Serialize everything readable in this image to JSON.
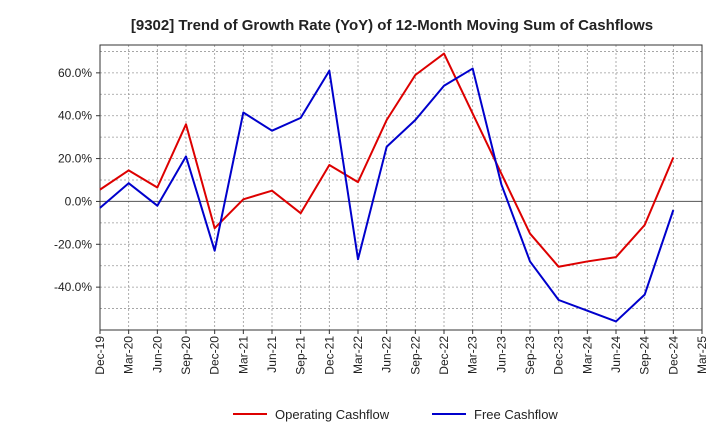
{
  "chart_data": {
    "type": "line",
    "title": "[9302]  Trend of Growth Rate (YoY) of 12-Month Moving Sum of Cashflows",
    "xlabel": "",
    "ylabel": "",
    "categories": [
      "Dec-19",
      "Mar-20",
      "Jun-20",
      "Sep-20",
      "Dec-20",
      "Mar-21",
      "Jun-21",
      "Sep-21",
      "Dec-21",
      "Mar-22",
      "Jun-22",
      "Sep-22",
      "Dec-22",
      "Mar-23",
      "Jun-23",
      "Sep-23",
      "Dec-23",
      "Mar-24",
      "Jun-24",
      "Sep-24",
      "Dec-24",
      "Mar-25"
    ],
    "x_tick_labels": [
      "Dec-19",
      "Mar-20",
      "Jun-20",
      "Sep-20",
      "Dec-20",
      "Mar-21",
      "Jun-21",
      "Sep-21",
      "Dec-21",
      "Mar-22",
      "Jun-22",
      "Sep-22",
      "Dec-22",
      "Mar-23",
      "Jun-23",
      "Sep-23",
      "Dec-23",
      "Mar-24",
      "Jun-24",
      "Sep-24",
      "Dec-24",
      "Mar-25"
    ],
    "y_ticks": [
      -40,
      -20,
      0,
      20,
      40,
      60
    ],
    "y_tick_labels": [
      "-40.0%",
      "-20.0%",
      "0.0%",
      "20.0%",
      "40.0%",
      "60.0%"
    ],
    "ylim": [
      -60,
      73
    ],
    "grid": true,
    "legend_position": "bottom",
    "series": [
      {
        "name": "Operating Cashflow",
        "color": "#dd0000",
        "values": [
          5.5,
          14.5,
          6.5,
          36,
          -12.5,
          1,
          5,
          -5.5,
          17,
          9,
          38,
          59,
          69,
          41,
          13,
          -15,
          -30.5,
          -28,
          -26,
          -11,
          20.5,
          null
        ]
      },
      {
        "name": "Free Cashflow",
        "color": "#0000cc",
        "values": [
          -3,
          8.5,
          -2,
          21,
          -23,
          41.5,
          33,
          39,
          61,
          -27,
          25.5,
          38,
          54,
          62,
          8,
          -28,
          -46,
          -51,
          -56,
          -43.5,
          -4,
          null
        ]
      }
    ]
  }
}
